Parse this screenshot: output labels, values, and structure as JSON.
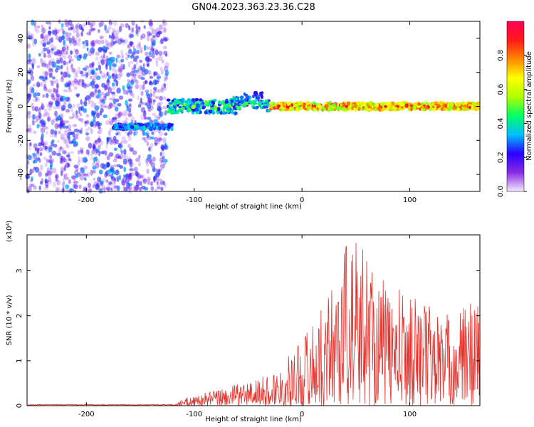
{
  "chart_data": [
    {
      "type": "heatmap",
      "title": "GN04.2023.363.23.36.C28",
      "xlabel": "Height of straight line (km)",
      "ylabel": "Frequency (Hz)",
      "xlim": [
        -255,
        165
      ],
      "ylim": [
        -50,
        50
      ],
      "xticks": [
        -200,
        -100,
        0,
        100
      ],
      "yticks": [
        -40,
        -20,
        0,
        20,
        40
      ],
      "colorbar": {
        "label": "Normalized spectral amplitude",
        "range": [
          0.0,
          1.0
        ],
        "ticks": [
          0.0,
          0.2,
          0.4,
          0.6,
          0.8
        ],
        "tick_labels": [
          "0.0",
          "0.2",
          "0.4",
          "0.6",
          "0.8"
        ],
        "colors": [
          "#f4eaff",
          "#8a2be2",
          "#2a00ff",
          "#00bfff",
          "#00ff66",
          "#b0ff00",
          "#ffff00",
          "#ff8800",
          "#ff1a1a",
          "#ff0055"
        ]
      },
      "features": [
        {
          "kind": "noise",
          "x_range": [
            -255,
            -125
          ],
          "freq_range": [
            -50,
            50
          ],
          "amplitude": [
            0.0,
            0.25
          ]
        },
        {
          "kind": "track",
          "x_range": [
            -175,
            -120
          ],
          "freq": -12,
          "amplitude": [
            0.2,
            0.45
          ]
        },
        {
          "kind": "track",
          "x_range": [
            -125,
            -30
          ],
          "freq": 0,
          "spread": 4,
          "amplitude": [
            0.2,
            0.6
          ]
        },
        {
          "kind": "track",
          "x_range": [
            -30,
            165
          ],
          "freq": 0,
          "spread": 2,
          "amplitude": [
            0.5,
            1.0
          ]
        }
      ]
    },
    {
      "type": "line",
      "xlabel": "Height of straight line (km)",
      "ylabel": "SNR (10 * v/v)",
      "y_multiplier": "(x10⁴)",
      "xlim": [
        -255,
        165
      ],
      "ylim": [
        0,
        3.8
      ],
      "xticks": [
        -200,
        -100,
        0,
        100
      ],
      "yticks": [
        0,
        1,
        2,
        3
      ],
      "color": "#e8302a",
      "envelope": [
        {
          "x": -255,
          "y": 0.02
        },
        {
          "x": -120,
          "y": 0.03
        },
        {
          "x": -105,
          "y": 0.2
        },
        {
          "x": -80,
          "y": 0.35
        },
        {
          "x": -50,
          "y": 0.55
        },
        {
          "x": -30,
          "y": 0.7
        },
        {
          "x": -15,
          "y": 1.0
        },
        {
          "x": 0,
          "y": 1.6
        },
        {
          "x": 20,
          "y": 2.2
        },
        {
          "x": 40,
          "y": 3.8
        },
        {
          "x": 60,
          "y": 3.6
        },
        {
          "x": 80,
          "y": 2.6
        },
        {
          "x": 100,
          "y": 2.6
        },
        {
          "x": 120,
          "y": 2.3
        },
        {
          "x": 140,
          "y": 2.0
        },
        {
          "x": 165,
          "y": 2.6
        }
      ]
    }
  ]
}
